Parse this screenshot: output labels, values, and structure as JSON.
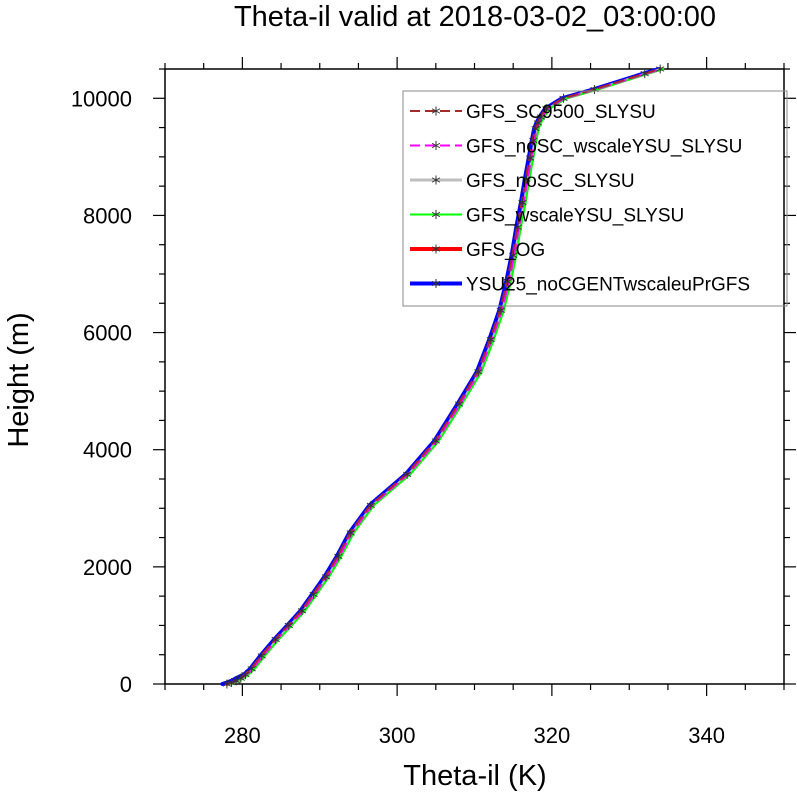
{
  "chart_data": {
    "type": "line",
    "title": "Theta-il valid at 2018-03-02_03:00:00",
    "xlabel": "Theta-il (K)",
    "ylabel": "Height (m)",
    "xlim": [
      270,
      350
    ],
    "ylim": [
      0,
      10500
    ],
    "xticks": [
      280,
      300,
      320,
      340
    ],
    "yticks": [
      0,
      2000,
      4000,
      6000,
      8000,
      10000
    ],
    "legend_position": "top-right",
    "series": [
      {
        "name": "GFS_SC9500_SLYSU",
        "color": "#a52a2a",
        "style": "dashed",
        "width": 2
      },
      {
        "name": "GFS_noSC_wscaleYSU_SLYSU",
        "color": "#ff00ff",
        "style": "dashed",
        "width": 2
      },
      {
        "name": "GFS_noSC_SLYSU",
        "color": "#bebebe",
        "style": "solid",
        "width": 3
      },
      {
        "name": "GFS_wscaleYSU_SLYSU",
        "color": "#00ff00",
        "style": "solid",
        "width": 2
      },
      {
        "name": "GFS_OG",
        "color": "#ff0000",
        "style": "solid",
        "width": 4
      },
      {
        "name": "YSU25_noCGENTwscaleuPrGFS",
        "color": "#0000ff",
        "style": "solid",
        "width": 4
      }
    ],
    "profile": {
      "x": [
        278.0,
        278.6,
        279.2,
        279.8,
        280.4,
        281.2,
        282.5,
        284.3,
        286.0,
        287.7,
        289.2,
        290.8,
        292.4,
        294.0,
        296.6,
        301.3,
        305.0,
        308.0,
        310.5,
        312.1,
        313.4,
        314.3,
        315.0,
        315.6,
        316.2,
        316.7,
        317.2,
        317.6,
        317.9,
        318.2,
        318.6,
        319.3,
        321.5,
        325.5,
        332.0,
        334.0
      ],
      "y": [
        0,
        25,
        55,
        100,
        160,
        260,
        480,
        760,
        1000,
        1250,
        1530,
        1830,
        2180,
        2580,
        3050,
        3580,
        4150,
        4780,
        5330,
        5880,
        6380,
        6870,
        7320,
        7800,
        8220,
        8620,
        8980,
        9280,
        9480,
        9580,
        9680,
        9820,
        10000,
        10150,
        10420,
        10500
      ]
    }
  }
}
